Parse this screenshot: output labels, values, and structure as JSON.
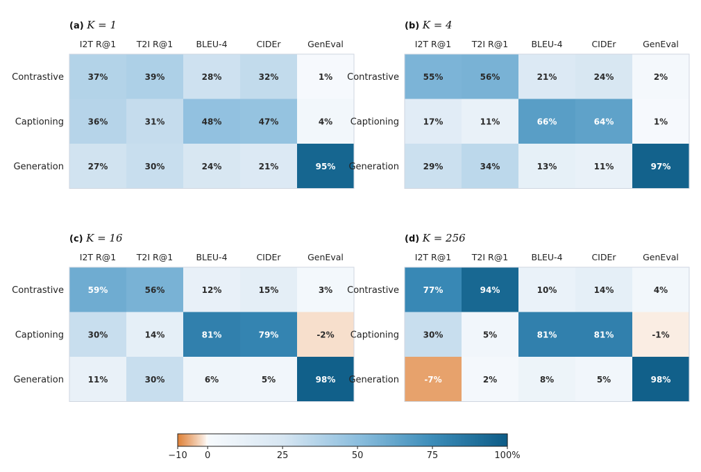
{
  "chart_data": {
    "type": "heatmap",
    "columns": [
      "I2T R@1",
      "T2I R@1",
      "BLEU-4",
      "CIDEr",
      "GenEval"
    ],
    "rows": [
      "Contrastive",
      "Captioning",
      "Generation"
    ],
    "panels": [
      {
        "tag": "(a)",
        "k_label": "K = 1",
        "values": [
          [
            37,
            39,
            28,
            32,
            1
          ],
          [
            36,
            31,
            48,
            47,
            4
          ],
          [
            27,
            30,
            24,
            21,
            95
          ]
        ]
      },
      {
        "tag": "(b)",
        "k_label": "K = 4",
        "values": [
          [
            55,
            56,
            21,
            24,
            2
          ],
          [
            17,
            11,
            66,
            64,
            1
          ],
          [
            29,
            34,
            13,
            11,
            97
          ]
        ]
      },
      {
        "tag": "(c)",
        "k_label": "K = 16",
        "values": [
          [
            59,
            56,
            12,
            15,
            3
          ],
          [
            30,
            14,
            81,
            79,
            -2
          ],
          [
            11,
            30,
            6,
            5,
            98
          ]
        ]
      },
      {
        "tag": "(d)",
        "k_label": "K = 256",
        "values": [
          [
            77,
            94,
            10,
            14,
            4
          ],
          [
            30,
            5,
            81,
            81,
            -1
          ],
          [
            -7,
            2,
            8,
            5,
            98
          ]
        ]
      }
    ],
    "value_suffix": "%",
    "colorbar": {
      "ticks": [
        -10,
        0,
        25,
        50,
        75,
        100
      ],
      "tick_labels": [
        "−10",
        "0",
        "25",
        "50",
        "75",
        "100%"
      ],
      "range": [
        -10,
        100
      ],
      "neg_color": "#DF8138",
      "zero_color": "#FFFFFF",
      "pos_color": "#0D5C86"
    }
  }
}
